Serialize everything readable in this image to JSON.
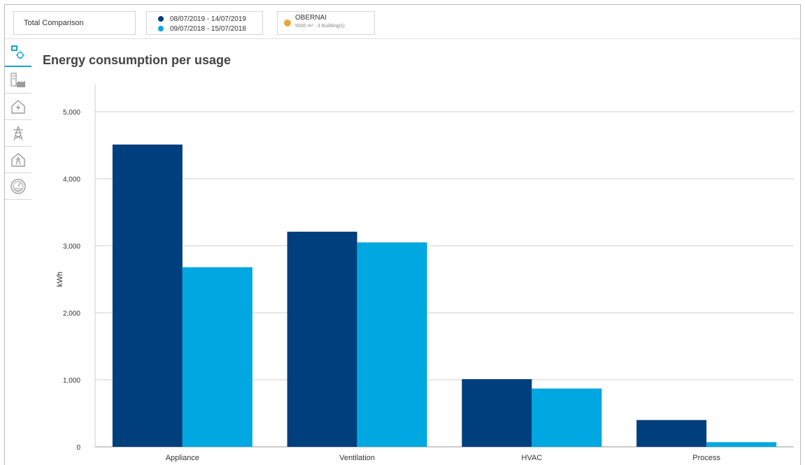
{
  "filters": {
    "total_label": "Total Comparison",
    "periods": [
      {
        "label": "08/07/2019 - 14/07/2019",
        "color": "#003f7d"
      },
      {
        "label": "09/07/2018 - 15/07/2018",
        "color": "#00a8e1"
      }
    ],
    "site": {
      "name": "OBERNAI",
      "detail": "5000 m²  -  3 Building(s)",
      "color": "#e8a83a"
    }
  },
  "sidebar": {
    "icons": [
      "usage-bulb-icon",
      "buildings-industry-icon",
      "building-electricity-icon",
      "power-pylon-icon",
      "building-pylon-icon",
      "meter-gauge-icon"
    ],
    "active_index": 0,
    "accent_color": "#1aa0d8"
  },
  "chart_data": {
    "type": "bar",
    "title": "Energy consumption per usage",
    "xlabel": "",
    "ylabel": "kWh",
    "categories": [
      "Appliance",
      "Ventilation",
      "HVAC",
      "Process"
    ],
    "series": [
      {
        "name": "08/07/2019 - 14/07/2019",
        "color": "#003f7d",
        "values": [
          4510,
          3210,
          1010,
          400
        ]
      },
      {
        "name": "09/07/2018 - 15/07/2018",
        "color": "#00a8e1",
        "values": [
          2680,
          3050,
          870,
          70
        ]
      }
    ],
    "ylim": [
      0,
      5000
    ],
    "yticks": [
      0,
      1000,
      2000,
      3000,
      4000,
      5000
    ],
    "ytick_labels": [
      "0",
      "1,000",
      "2,000",
      "3,000",
      "4,000",
      "5,000"
    ],
    "grid": true,
    "legend": "none"
  }
}
